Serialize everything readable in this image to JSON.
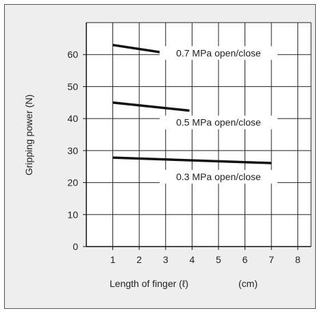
{
  "chart_data": {
    "type": "line",
    "title": "",
    "xlabel": "Length of finger (ℓ)",
    "xunit": "(cm)",
    "ylabel": "Gripping power (N)",
    "xlim": [
      0,
      8.5
    ],
    "ylim": [
      0,
      70
    ],
    "xticks": [
      1,
      2,
      3,
      4,
      5,
      6,
      7,
      8
    ],
    "yticks": [
      0,
      10,
      20,
      30,
      40,
      50,
      60
    ],
    "grid": true,
    "series": [
      {
        "name": "0.7 MPa open/close",
        "x": [
          1,
          3
        ],
        "y": [
          63,
          60.5
        ],
        "label_x": 5.0,
        "label_y": 60.5
      },
      {
        "name": "0.5 MPa open/close",
        "x": [
          1,
          3.9
        ],
        "y": [
          45,
          42.5
        ],
        "label_x": 5.0,
        "label_y": 38.8
      },
      {
        "name": "0.3 MPa open/close",
        "x": [
          1,
          7
        ],
        "y": [
          27.8,
          26.1
        ],
        "label_x": 5.0,
        "label_y": 21.8
      }
    ],
    "colors": {
      "background": "#eeeeee",
      "plot_background": "#ffffff",
      "line": "#111111",
      "grid": "#222222"
    }
  }
}
